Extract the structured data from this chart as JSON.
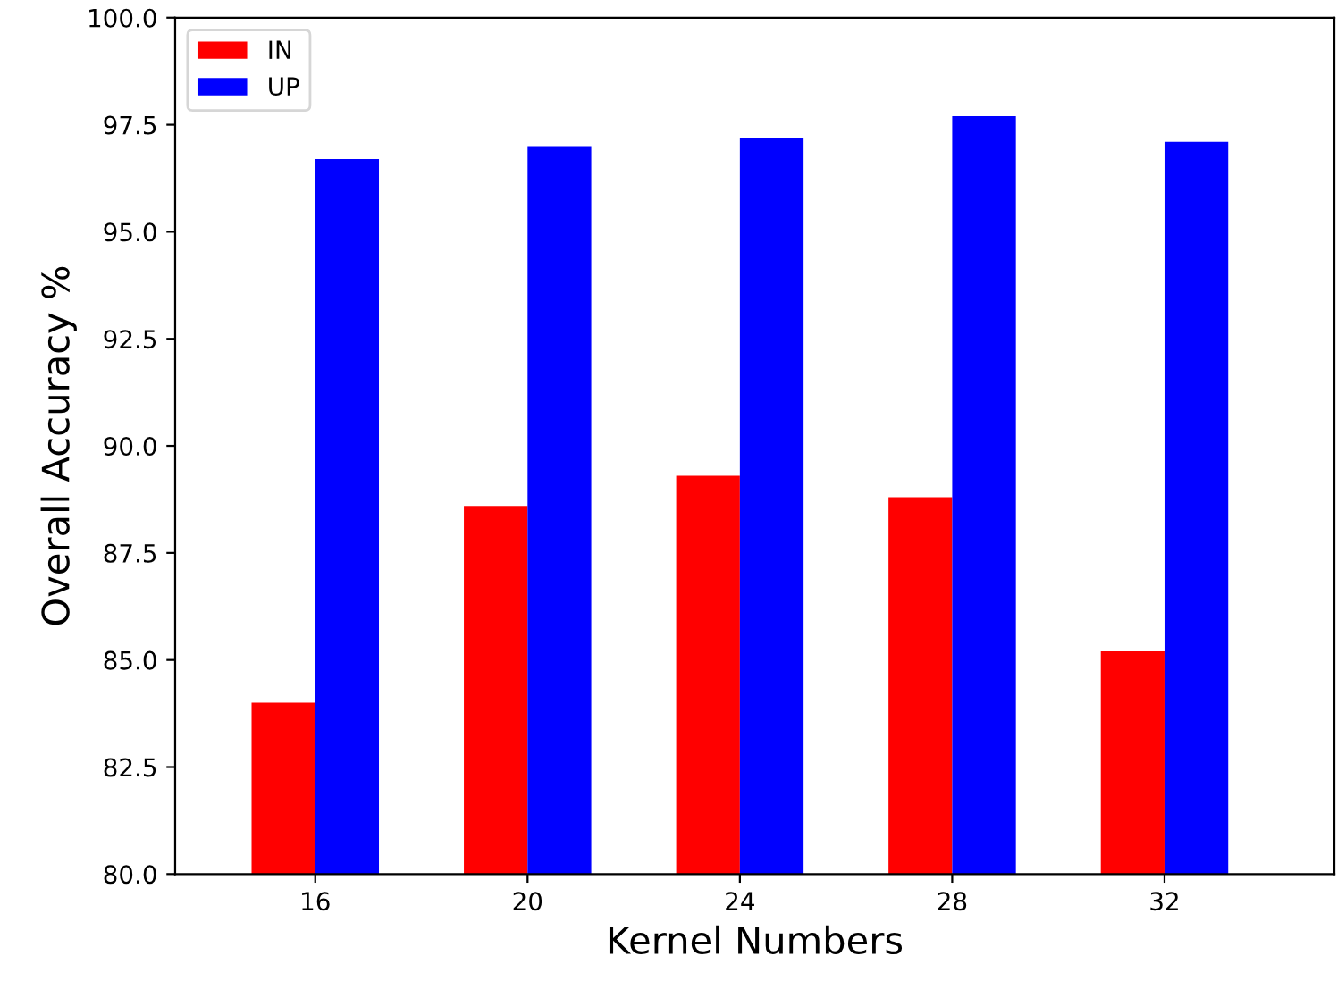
{
  "chart_data": {
    "type": "bar",
    "xlabel": "Kernel Numbers",
    "ylabel": "Overall Accuracy %",
    "categories": [
      "16",
      "20",
      "24",
      "28",
      "32"
    ],
    "series": [
      {
        "name": "IN",
        "color": "#ff0000",
        "values": [
          84.0,
          88.6,
          89.3,
          88.8,
          85.2
        ]
      },
      {
        "name": "UP",
        "color": "#0000ff",
        "values": [
          96.7,
          97.0,
          97.2,
          97.7,
          97.1
        ]
      }
    ],
    "ylim": [
      80,
      100
    ],
    "yticks": [
      {
        "value": 80,
        "label": "80.0"
      },
      {
        "value": 82.5,
        "label": "82.5"
      },
      {
        "value": 85,
        "label": "85.0"
      },
      {
        "value": 87.5,
        "label": "87.5"
      },
      {
        "value": 90,
        "label": "90.0"
      },
      {
        "value": 92.5,
        "label": "92.5"
      },
      {
        "value": 95,
        "label": "95.0"
      },
      {
        "value": 97.5,
        "label": "97.5"
      },
      {
        "value": 100,
        "label": "100.0"
      }
    ],
    "grid": false,
    "legend": "top left"
  }
}
